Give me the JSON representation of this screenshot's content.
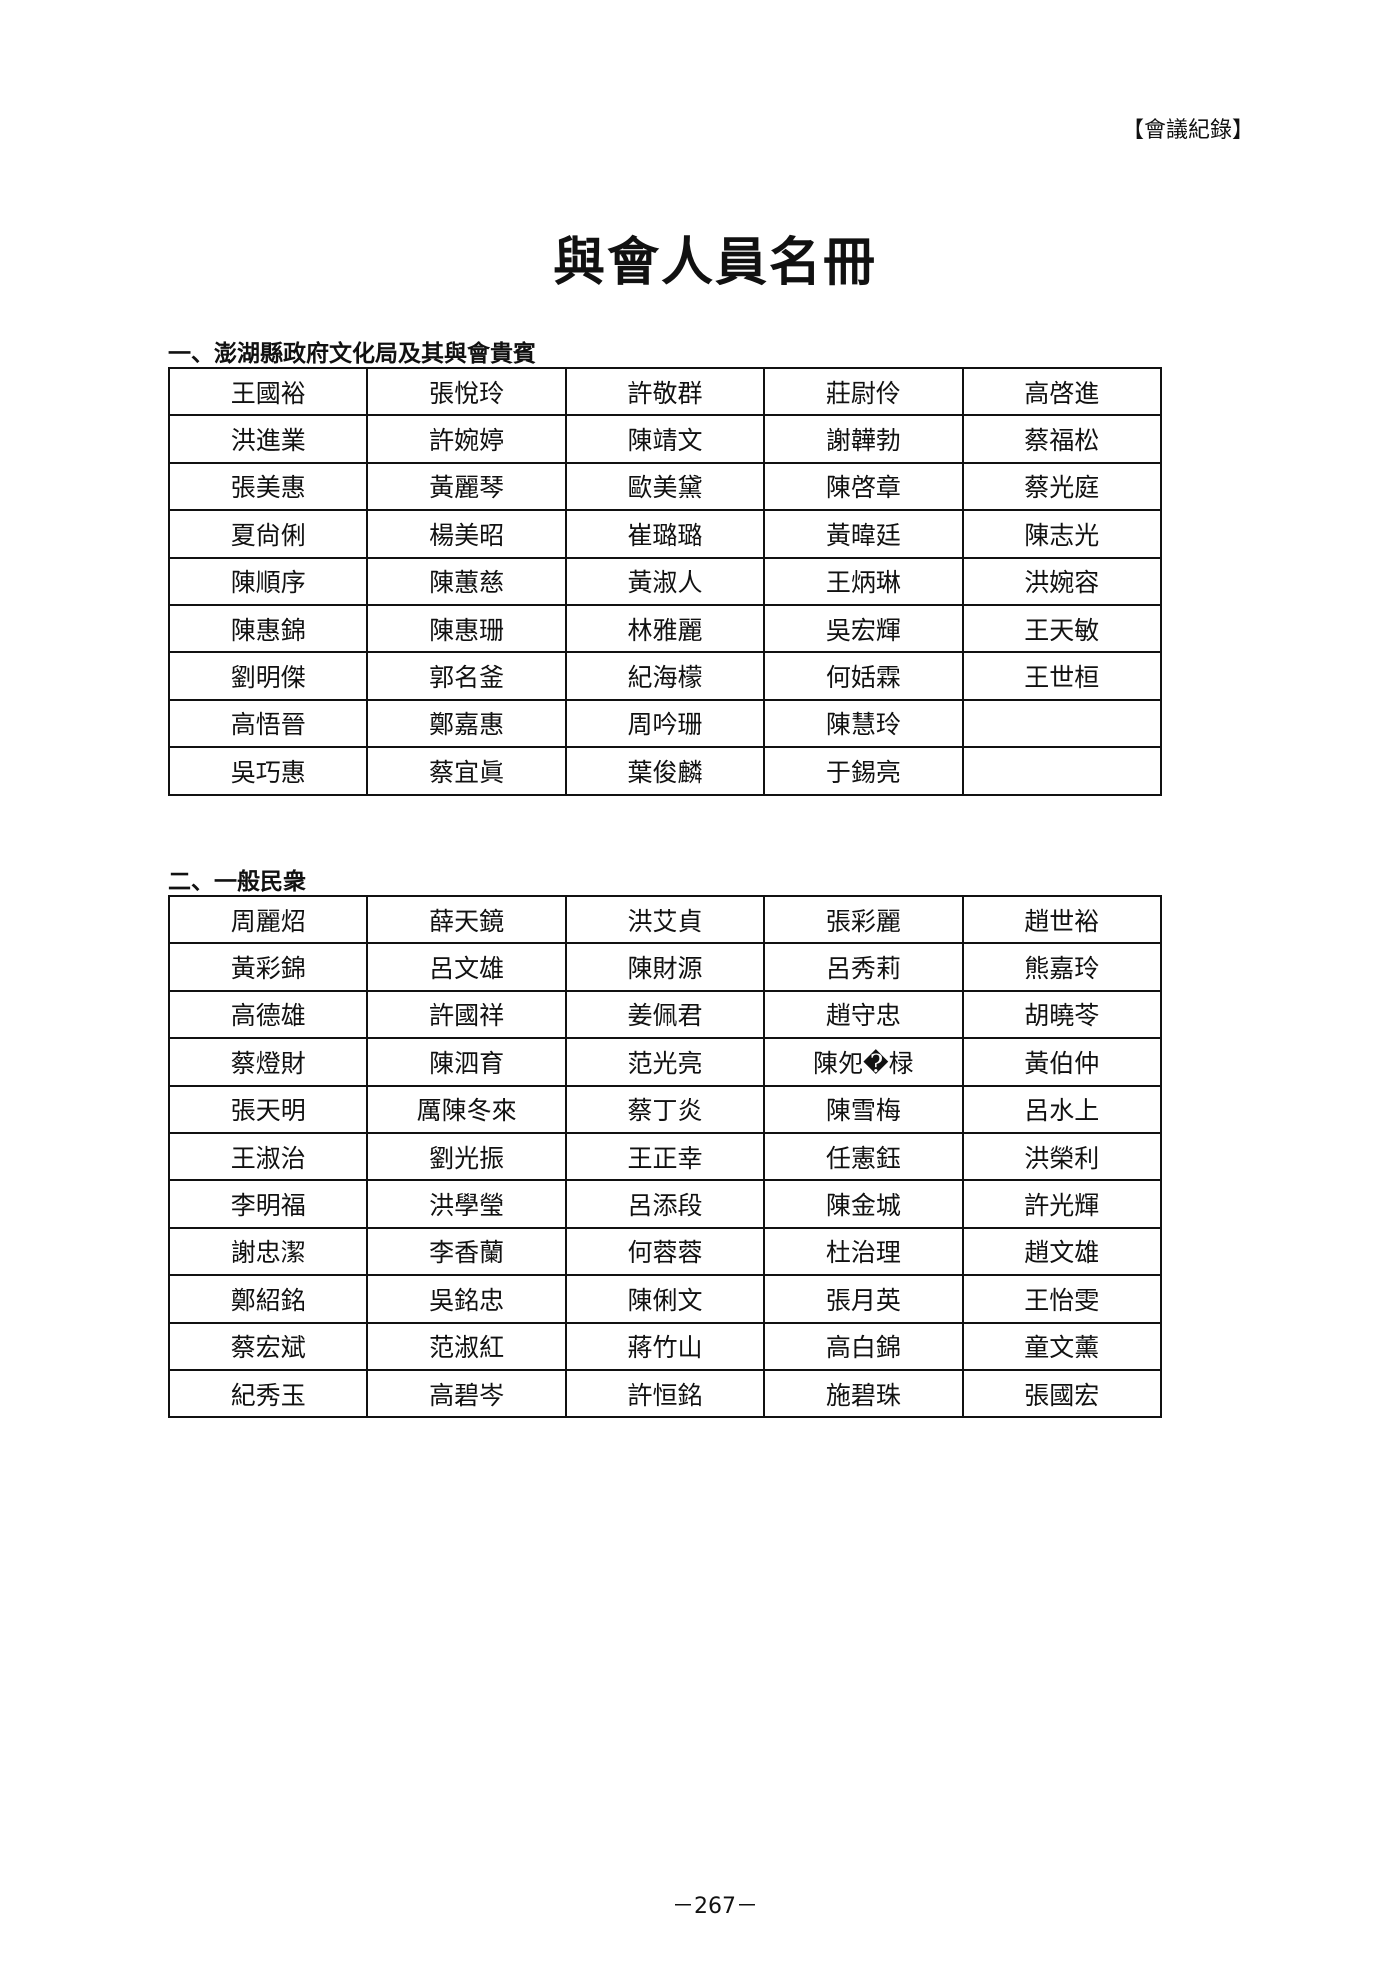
{
  "header": {
    "section_tag": "【會議紀錄】"
  },
  "title": "與會人員名冊",
  "sections": [
    {
      "heading": "一、澎湖縣政府文化局及其與會貴賓",
      "rows": [
        [
          "王國裕",
          "張悅玲",
          "許敬群",
          "莊尉伶",
          "高啓進"
        ],
        [
          "洪進業",
          "許婉婷",
          "陳靖文",
          "謝韡勃",
          "蔡福松"
        ],
        [
          "張美惠",
          "黃麗琴",
          "歐美黛",
          "陳啓章",
          "蔡光庭"
        ],
        [
          "夏尙俐",
          "楊美昭",
          "崔璐璐",
          "黃暐廷",
          "陳志光"
        ],
        [
          "陳順序",
          "陳蕙慈",
          "黃淑人",
          "王炳琳",
          "洪婉容"
        ],
        [
          "陳惠錦",
          "陳惠珊",
          "林雅麗",
          "吳宏輝",
          "王天敏"
        ],
        [
          "劉明傑",
          "郭名釜",
          "紀海檬",
          "何姡霖",
          "王世桓"
        ],
        [
          "高悟晉",
          "鄭嘉惠",
          "周吟珊",
          "陳慧玲",
          ""
        ],
        [
          "吳巧惠",
          "蔡宜眞",
          "葉俊麟",
          "于錫亮",
          ""
        ]
      ]
    },
    {
      "heading": "二、一般民衆",
      "rows": [
        [
          "周麗炤",
          "薛天鏡",
          "洪艾貞",
          "張彩麗",
          "趙世裕"
        ],
        [
          "黃彩錦",
          "呂文雄",
          "陳財源",
          "呂秀莉",
          "熊嘉玲"
        ],
        [
          "高德雄",
          "許國祥",
          "姜佩君",
          "趙守忠",
          "胡曉苓"
        ],
        [
          "蔡燈財",
          "陳泗育",
          "范光亮",
          "陳夗�椂",
          "黃伯仲"
        ],
        [
          "張天明",
          "厲陳冬來",
          "蔡丁炎",
          "陳雪梅",
          "呂水上"
        ],
        [
          "王淑治",
          "劉光振",
          "王正幸",
          "任憲鈺",
          "洪榮利"
        ],
        [
          "李明福",
          "洪學瑩",
          "呂添段",
          "陳金城",
          "許光輝"
        ],
        [
          "謝忠潔",
          "李香蘭",
          "何蓉蓉",
          "杜治理",
          "趙文雄"
        ],
        [
          "鄭紹銘",
          "吳銘忠",
          "陳俐文",
          "張月英",
          "王怡雯"
        ],
        [
          "蔡宏斌",
          "范淑紅",
          "蔣竹山",
          "高白錦",
          "童文薰"
        ],
        [
          "紀秀玉",
          "高碧岑",
          "許恒銘",
          "施碧珠",
          "張國宏"
        ]
      ]
    }
  ],
  "footer": {
    "page_number": "－267－"
  }
}
